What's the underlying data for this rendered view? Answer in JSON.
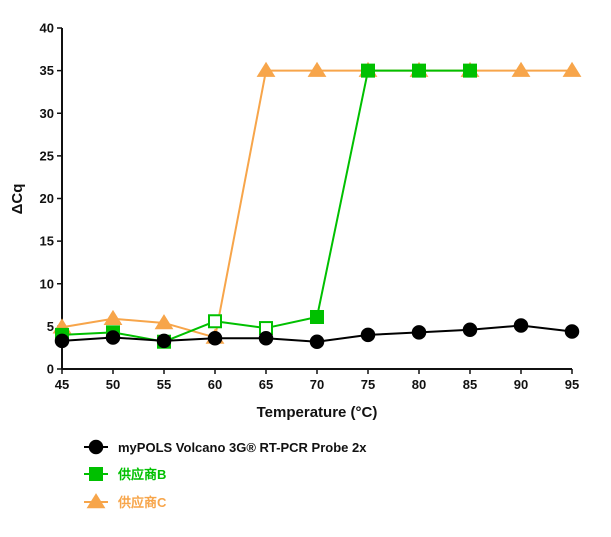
{
  "chart_data": {
    "type": "line",
    "title": "",
    "xlabel": "Temperature (°C)",
    "ylabel": "ΔCq",
    "xlim": [
      45,
      95
    ],
    "ylim": [
      0,
      40
    ],
    "xticks": [
      45,
      50,
      55,
      60,
      65,
      70,
      75,
      80,
      85,
      90,
      95
    ],
    "yticks": [
      0,
      5,
      10,
      15,
      20,
      25,
      30,
      35,
      40
    ],
    "grid": false,
    "legend_position": "bottom-left",
    "series": [
      {
        "name": "myPOLS Volcano 3G® RT-PCR Probe 2x",
        "color": "#000000",
        "marker": "circle",
        "x": [
          45,
          50,
          55,
          60,
          65,
          70,
          75,
          80,
          85,
          90,
          95
        ],
        "y": [
          3.3,
          3.7,
          3.3,
          3.6,
          3.6,
          3.2,
          4.0,
          4.3,
          4.6,
          5.1,
          4.4
        ],
        "hollow": [
          false,
          false,
          false,
          false,
          false,
          false,
          false,
          false,
          false,
          false,
          false
        ]
      },
      {
        "name": "供应商B",
        "color": "#00c000",
        "marker": "square",
        "x": [
          45,
          50,
          55,
          60,
          65,
          70,
          75,
          80,
          85
        ],
        "y": [
          4.0,
          4.3,
          3.2,
          5.6,
          4.8,
          6.1,
          35,
          35,
          35
        ],
        "hollow": [
          false,
          false,
          false,
          true,
          true,
          false,
          false,
          false,
          false
        ]
      },
      {
        "name": "供应商C",
        "color": "#f7a54a",
        "marker": "triangle",
        "x": [
          45,
          50,
          55,
          60,
          65,
          70,
          75,
          80,
          85,
          90,
          95
        ],
        "y": [
          4.9,
          5.9,
          5.4,
          3.7,
          35,
          35,
          35,
          35,
          35,
          35,
          35
        ],
        "hollow": [
          false,
          false,
          false,
          false,
          false,
          false,
          false,
          false,
          false,
          false,
          false
        ]
      }
    ]
  }
}
